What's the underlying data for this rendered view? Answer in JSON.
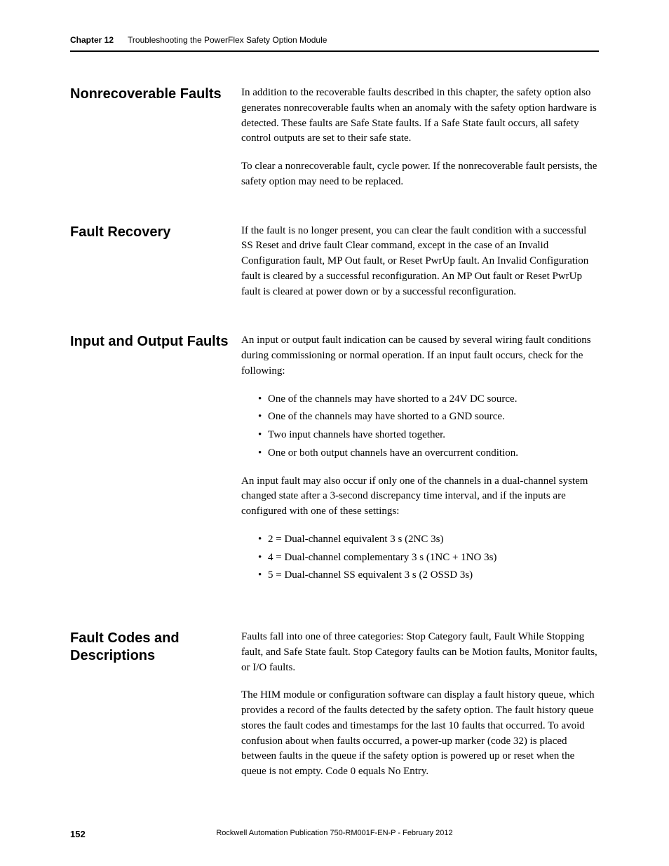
{
  "header": {
    "chapter_label": "Chapter 12",
    "chapter_title": "Troubleshooting the PowerFlex Safety Option Module"
  },
  "sections": {
    "nonrecoverable": {
      "heading": "Nonrecoverable Faults",
      "p1": "In addition to the recoverable faults described in this chapter, the safety option also generates nonrecoverable faults when an anomaly with the safety option hardware is detected. These faults are Safe State faults. If a Safe State fault occurs, all safety control outputs are set to their safe state.",
      "p2": "To clear a nonrecoverable fault, cycle power. If the nonrecoverable fault persists, the safety option may need to be replaced."
    },
    "recovery": {
      "heading": "Fault Recovery",
      "p1": "If the fault is no longer present, you can clear the fault condition with a successful SS Reset and drive fault Clear command, except in the case of an Invalid Configuration fault, MP Out fault, or Reset PwrUp fault. An Invalid Configuration fault is cleared by a successful reconfiguration. An MP Out fault or Reset PwrUp fault is cleared at power down or by a successful reconfiguration."
    },
    "io": {
      "heading": "Input and Output Faults",
      "p1": "An input or output fault indication can be caused by several wiring fault conditions during commissioning or normal operation. If an input fault occurs, check for the following:",
      "list1": {
        "i1": "One of the channels may have shorted to a 24V DC source.",
        "i2": "One of the channels may have shorted to a GND source.",
        "i3": "Two input channels have shorted together.",
        "i4": "One or both output channels have an overcurrent condition."
      },
      "p2": "An input fault may also occur if only one of the channels in a dual-channel system changed state after a 3-second discrepancy time interval, and if the inputs are configured with one of these settings:",
      "list2": {
        "i1": "2 = Dual-channel equivalent 3 s (2NC 3s)",
        "i2": "4 = Dual-channel complementary 3 s (1NC + 1NO 3s)",
        "i3": "5 = Dual-channel SS equivalent 3 s (2 OSSD 3s)"
      }
    },
    "codes": {
      "heading": "Fault Codes and Descriptions",
      "p1": "Faults fall into one of three categories: Stop Category fault, Fault While Stopping fault, and Safe State fault. Stop Category faults can be Motion faults, Monitor faults, or I/O faults.",
      "p2": "The HIM module or configuration software can display a fault history queue, which provides a record of the faults detected by the safety option. The fault history queue stores the fault codes and timestamps for the last 10 faults that occurred. To avoid confusion about when faults occurred, a power-up marker (code 32) is placed between faults in the queue if the safety option is powered up or reset when the queue is not empty. Code 0 equals No Entry."
    }
  },
  "footer": {
    "page": "152",
    "pub": "Rockwell Automation Publication 750-RM001F-EN-P - February 2012"
  }
}
